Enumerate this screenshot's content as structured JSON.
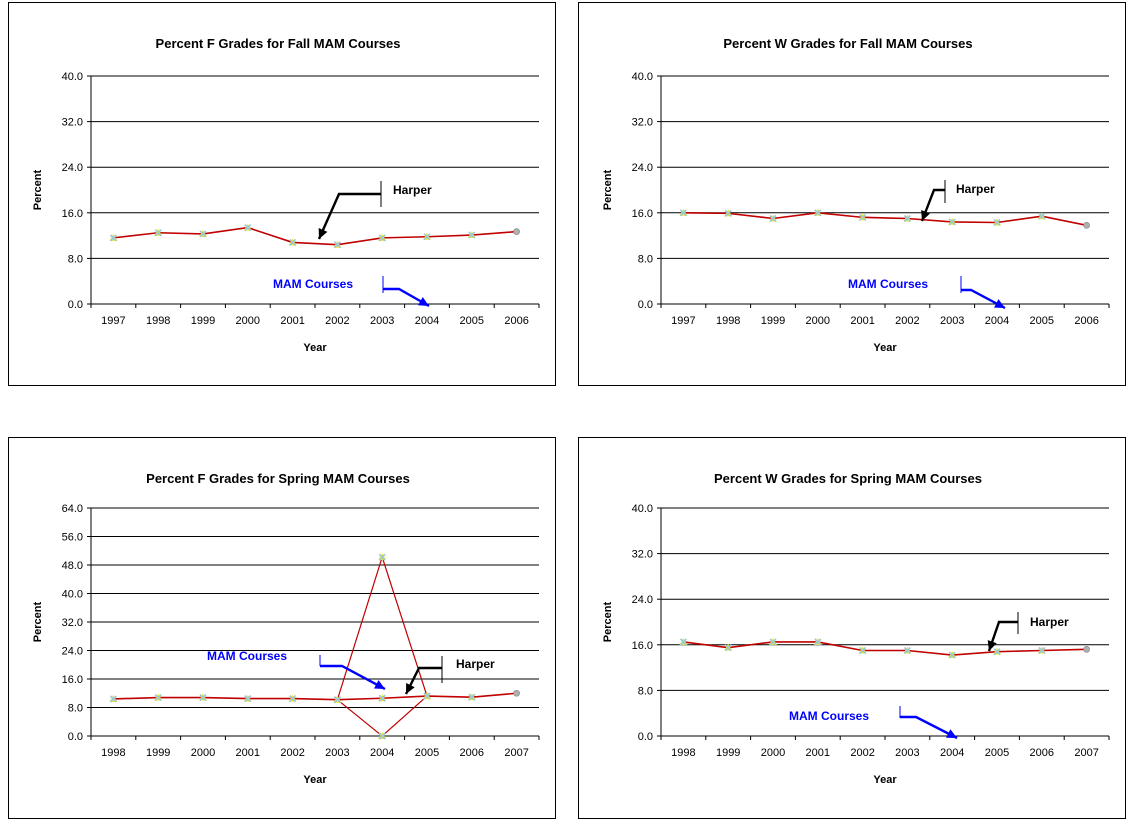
{
  "colors": {
    "series": "#c00000",
    "grid": "#000000",
    "marker": "#9cc7d8",
    "tri": "#e6e62e",
    "mam": "#0000ff",
    "harper": "#000000"
  },
  "chart_data": [
    {
      "type": "line",
      "title": "Percent F Grades for Fall MAM Courses",
      "xlabel": "Year",
      "ylabel": "Percent",
      "categories": [
        "1997",
        "1998",
        "1999",
        "2000",
        "2001",
        "2002",
        "2003",
        "2004",
        "2005",
        "2006"
      ],
      "ylim": [
        0,
        40
      ],
      "yticks": [
        "0.0",
        "8.0",
        "16.0",
        "24.0",
        "32.0",
        "40.0"
      ],
      "grid": true,
      "series": [
        {
          "values": [
            11.6,
            12.5,
            12.3,
            13.4,
            10.8,
            10.4,
            11.6,
            11.8,
            12.1,
            12.7
          ]
        }
      ],
      "annotations": [
        {
          "text": "Harper",
          "color": "#000000"
        },
        {
          "text": "MAM Courses",
          "color": "#0000ff"
        }
      ]
    },
    {
      "type": "line",
      "title": "Percent W Grades for Fall MAM Courses",
      "xlabel": "Year",
      "ylabel": "Percent",
      "categories": [
        "1997",
        "1998",
        "1999",
        "2000",
        "2001",
        "2002",
        "2003",
        "2004",
        "2005",
        "2006"
      ],
      "ylim": [
        0,
        40
      ],
      "yticks": [
        "0.0",
        "8.0",
        "16.0",
        "24.0",
        "32.0",
        "40.0"
      ],
      "grid": true,
      "series": [
        {
          "values": [
            16.0,
            15.9,
            15.0,
            16.0,
            15.2,
            15.0,
            14.4,
            14.3,
            15.4,
            13.8
          ]
        }
      ],
      "annotations": [
        {
          "text": "Harper",
          "color": "#000000"
        },
        {
          "text": "MAM Courses",
          "color": "#0000ff"
        }
      ]
    },
    {
      "type": "line",
      "title": "Percent F Grades for Spring MAM Courses",
      "xlabel": "Year",
      "ylabel": "Percent",
      "categories": [
        "1998",
        "1999",
        "2000",
        "2001",
        "2002",
        "2003",
        "2004",
        "2005",
        "2006",
        "2007"
      ],
      "ylim": [
        0,
        64
      ],
      "yticks": [
        "0.0",
        "8.0",
        "16.0",
        "24.0",
        "32.0",
        "40.0",
        "48.0",
        "56.0",
        "64.0"
      ],
      "grid": true,
      "series": [
        {
          "values": [
            10.4,
            10.8,
            10.8,
            10.5,
            10.5,
            10.2,
            10.6,
            11.2,
            10.9,
            12.0
          ]
        },
        {
          "values": [
            null,
            null,
            null,
            null,
            null,
            10.2,
            50.2,
            11.2,
            null,
            null
          ]
        },
        {
          "values": [
            null,
            null,
            null,
            null,
            null,
            10.2,
            0.0,
            11.2,
            null,
            null
          ]
        }
      ],
      "annotations": [
        {
          "text": "Harper",
          "color": "#000000"
        },
        {
          "text": "MAM Courses",
          "color": "#0000ff"
        }
      ]
    },
    {
      "type": "line",
      "title": "Percent W Grades for Spring MAM Courses",
      "xlabel": "Year",
      "ylabel": "Percent",
      "categories": [
        "1998",
        "1999",
        "2000",
        "2001",
        "2002",
        "2003",
        "2004",
        "2005",
        "2006",
        "2007"
      ],
      "ylim": [
        0,
        40
      ],
      "yticks": [
        "0.0",
        "8.0",
        "16.0",
        "24.0",
        "32.0",
        "40.0"
      ],
      "grid": true,
      "series": [
        {
          "values": [
            16.5,
            15.5,
            16.5,
            16.5,
            15.0,
            15.0,
            14.2,
            14.8,
            15.0,
            15.2
          ]
        }
      ],
      "annotations": [
        {
          "text": "Harper",
          "color": "#000000"
        },
        {
          "text": "MAM Courses",
          "color": "#0000ff"
        }
      ]
    }
  ]
}
